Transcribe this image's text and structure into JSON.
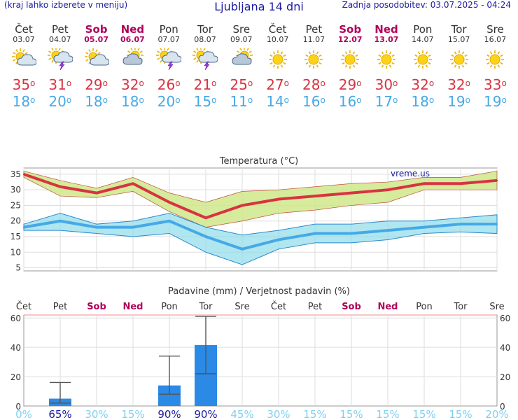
{
  "header": {
    "menu_hint": "(kraj lahko izberete v meniju)",
    "title": "Ljubljana 14 dni",
    "updated": "Zadnja posodobitev: 03.07.2025 - 04:24"
  },
  "days": [
    {
      "name": "Čet",
      "date": "03.07",
      "weekend": false,
      "icon": "sun-cloud-icon",
      "hi": "35",
      "lo": "18"
    },
    {
      "name": "Pet",
      "date": "04.07",
      "weekend": false,
      "icon": "sun-cloud-lightning-icon",
      "hi": "31",
      "lo": "20"
    },
    {
      "name": "Sob",
      "date": "05.07",
      "weekend": true,
      "icon": "sun-cloud-icon",
      "hi": "29",
      "lo": "18"
    },
    {
      "name": "Ned",
      "date": "06.07",
      "weekend": true,
      "icon": "cloud-sun-icon",
      "hi": "32",
      "lo": "18"
    },
    {
      "name": "Pon",
      "date": "07.07",
      "weekend": false,
      "icon": "sun-cloud-lightning-icon",
      "hi": "26",
      "lo": "20"
    },
    {
      "name": "Tor",
      "date": "08.07",
      "weekend": false,
      "icon": "sun-cloud-lightning-icon",
      "hi": "21",
      "lo": "15"
    },
    {
      "name": "Sre",
      "date": "09.07",
      "weekend": false,
      "icon": "cloud-sun-icon",
      "hi": "25",
      "lo": "11"
    },
    {
      "name": "Čet",
      "date": "10.07",
      "weekend": false,
      "icon": "sun-icon",
      "hi": "27",
      "lo": "14"
    },
    {
      "name": "Pet",
      "date": "11.07",
      "weekend": false,
      "icon": "sun-icon",
      "hi": "28",
      "lo": "16"
    },
    {
      "name": "Sob",
      "date": "12.07",
      "weekend": true,
      "icon": "sun-icon",
      "hi": "29",
      "lo": "16"
    },
    {
      "name": "Ned",
      "date": "13.07",
      "weekend": true,
      "icon": "sun-icon",
      "hi": "30",
      "lo": "17"
    },
    {
      "name": "Pon",
      "date": "14.07",
      "weekend": false,
      "icon": "sun-icon",
      "hi": "32",
      "lo": "18"
    },
    {
      "name": "Tor",
      "date": "15.07",
      "weekend": false,
      "icon": "sun-icon",
      "hi": "32",
      "lo": "19"
    },
    {
      "name": "Sre",
      "date": "16.07",
      "weekend": false,
      "icon": "sun-icon",
      "hi": "33",
      "lo": "19"
    }
  ],
  "deg_symbol": "o",
  "colors": {
    "hi": "#d83341",
    "lo": "#46a9e6",
    "hi_band": "#cfe88a",
    "lo_band": "#8fdcea",
    "bar": "#2b8ae6",
    "weekend": "#b0005a",
    "prob_low": "#7fd0f0",
    "prob_high": "#1a1aa0"
  },
  "chart_data": [
    {
      "type": "line",
      "title": "Temperatura (°C)",
      "watermark": "vreme.us",
      "x": [
        "03.07",
        "04.07",
        "05.07",
        "06.07",
        "07.07",
        "08.07",
        "09.07",
        "10.07",
        "11.07",
        "12.07",
        "13.07",
        "14.07",
        "15.07",
        "16.07"
      ],
      "ylim": [
        4,
        37
      ],
      "yticks": [
        5,
        10,
        15,
        20,
        25,
        30,
        35
      ],
      "grid": true,
      "series": [
        {
          "values": [
            35,
            31,
            29,
            32,
            26,
            21,
            25,
            27,
            28,
            29,
            30,
            32,
            32,
            33
          ]
        },
        {
          "values": [
            18,
            20,
            18,
            18,
            20,
            15,
            11,
            14,
            16,
            16,
            17,
            18,
            19,
            19
          ]
        }
      ],
      "bands": [
        {
          "lower": [
            34,
            28,
            27.5,
            29.5,
            23,
            18,
            20,
            22.5,
            23.5,
            25,
            26,
            30,
            30,
            30
          ],
          "upper": [
            36,
            33,
            30.5,
            34,
            29,
            26,
            29.5,
            30,
            31,
            32,
            32.5,
            34,
            34,
            36
          ]
        },
        {
          "lower": [
            17,
            17,
            16,
            15,
            16,
            10,
            6,
            11,
            13,
            13,
            14,
            16,
            16.5,
            16
          ],
          "upper": [
            19,
            22.5,
            19,
            20,
            22.5,
            18,
            15.5,
            17,
            19,
            19,
            20,
            20,
            21,
            22
          ]
        }
      ]
    },
    {
      "type": "bar",
      "title": "Padavine (mm) / Verjetnost padavin (%)",
      "categories": [
        "Čet",
        "Pet",
        "Sob",
        "Ned",
        "Pon",
        "Tor",
        "Sre",
        "Čet",
        "Pet",
        "Sob",
        "Ned",
        "Pon",
        "Tor",
        "Sre"
      ],
      "weekend": [
        false,
        false,
        true,
        true,
        false,
        false,
        false,
        false,
        false,
        true,
        true,
        false,
        false,
        false
      ],
      "values": [
        0,
        5,
        0,
        0,
        14,
        41.5,
        0,
        0,
        0,
        0,
        0,
        0,
        0,
        0
      ],
      "error_high": [
        0,
        16,
        0,
        0,
        34,
        61,
        0,
        0,
        0,
        0,
        0,
        0,
        0,
        0
      ],
      "error_low": [
        0,
        2,
        0,
        0,
        8,
        22,
        0,
        0,
        0,
        0,
        0,
        0,
        0,
        0
      ],
      "probabilities": [
        "0%",
        "65%",
        "30%",
        "15%",
        "90%",
        "90%",
        "45%",
        "30%",
        "15%",
        "15%",
        "15%",
        "15%",
        "15%",
        "20%"
      ],
      "ylim": [
        0,
        62
      ],
      "yticks": [
        0,
        20,
        40,
        60
      ]
    }
  ]
}
